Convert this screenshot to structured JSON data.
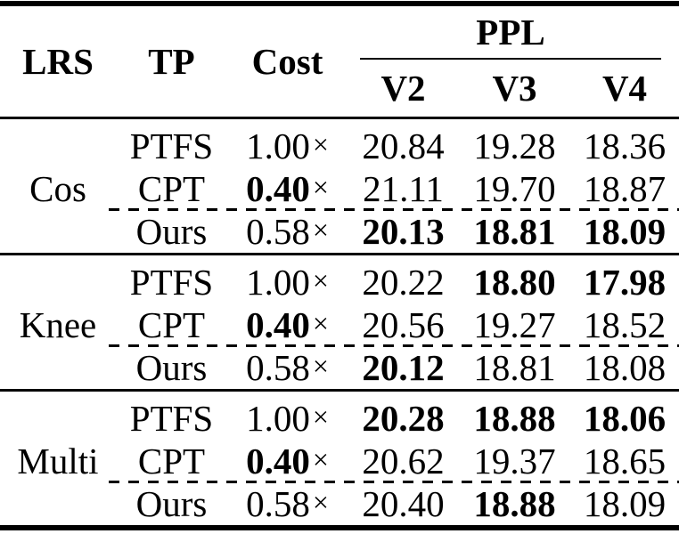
{
  "table": {
    "header": {
      "lrs": "LRS",
      "tp": "TP",
      "cost": "Cost",
      "ppl": "PPL",
      "v2": "V2",
      "v3": "V3",
      "v4": "V4"
    },
    "symbols": {
      "times": "×"
    },
    "groups": [
      {
        "label": "Cos",
        "rows": [
          {
            "tp": "PTFS",
            "cost": "1.00",
            "cost_bold": "false",
            "v2": "20.84",
            "v2_bold": "false",
            "v3": "19.28",
            "v3_bold": "false",
            "v4": "18.36",
            "v4_bold": "false"
          },
          {
            "tp": "CPT",
            "cost": "0.40",
            "cost_bold": "true",
            "v2": "21.11",
            "v2_bold": "false",
            "v3": "19.70",
            "v3_bold": "false",
            "v4": "18.87",
            "v4_bold": "false"
          },
          {
            "tp": "Ours",
            "cost": "0.58",
            "cost_bold": "false",
            "v2": "20.13",
            "v2_bold": "true",
            "v3": "18.81",
            "v3_bold": "true",
            "v4": "18.09",
            "v4_bold": "true"
          }
        ]
      },
      {
        "label": "Knee",
        "rows": [
          {
            "tp": "PTFS",
            "cost": "1.00",
            "cost_bold": "false",
            "v2": "20.22",
            "v2_bold": "false",
            "v3": "18.80",
            "v3_bold": "true",
            "v4": "17.98",
            "v4_bold": "true"
          },
          {
            "tp": "CPT",
            "cost": "0.40",
            "cost_bold": "true",
            "v2": "20.56",
            "v2_bold": "false",
            "v3": "19.27",
            "v3_bold": "false",
            "v4": "18.52",
            "v4_bold": "false"
          },
          {
            "tp": "Ours",
            "cost": "0.58",
            "cost_bold": "false",
            "v2": "20.12",
            "v2_bold": "true",
            "v3": "18.81",
            "v3_bold": "false",
            "v4": "18.08",
            "v4_bold": "false"
          }
        ]
      },
      {
        "label": "Multi",
        "rows": [
          {
            "tp": "PTFS",
            "cost": "1.00",
            "cost_bold": "false",
            "v2": "20.28",
            "v2_bold": "true",
            "v3": "18.88",
            "v3_bold": "true",
            "v4": "18.06",
            "v4_bold": "true"
          },
          {
            "tp": "CPT",
            "cost": "0.40",
            "cost_bold": "true",
            "v2": "20.62",
            "v2_bold": "false",
            "v3": "19.37",
            "v3_bold": "false",
            "v4": "18.65",
            "v4_bold": "false"
          },
          {
            "tp": "Ours",
            "cost": "0.58",
            "cost_bold": "false",
            "v2": "20.40",
            "v2_bold": "false",
            "v3": "18.88",
            "v3_bold": "true",
            "v4": "18.09",
            "v4_bold": "false"
          }
        ]
      }
    ]
  }
}
